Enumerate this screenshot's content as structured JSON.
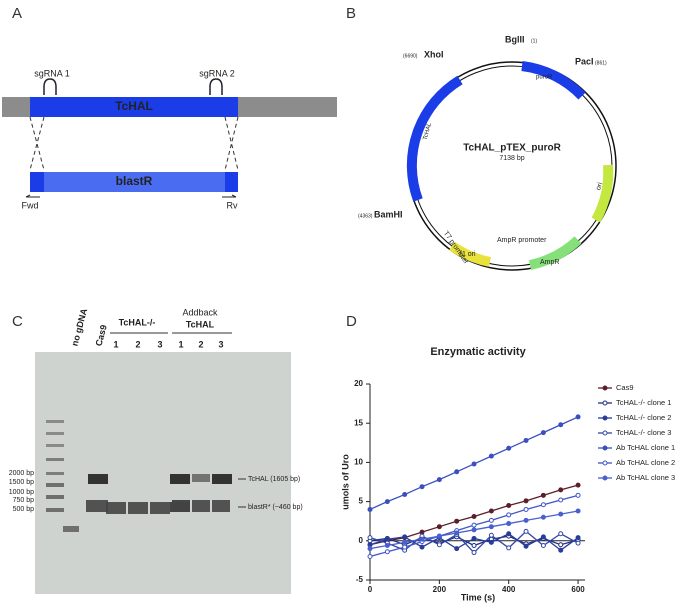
{
  "panels": {
    "a": {
      "letter": "A",
      "guides": [
        "sgRNA 1",
        "sgRNA 2"
      ],
      "gene": "TcHAL",
      "marker": "blastR",
      "primers": [
        "Fwd",
        "Rv"
      ]
    },
    "b": {
      "letter": "B",
      "name": "TcHAL_pTEX_puroR",
      "size": "7138 bp",
      "sites": [
        {
          "label": "BglII",
          "pos": "(1)"
        },
        {
          "label": "PacI",
          "pos": "(861)"
        },
        {
          "label": "XhoI",
          "pos": "(6690)"
        },
        {
          "label": "BamHI",
          "pos": "(4363)"
        }
      ],
      "features": [
        "puroR",
        "TcHAL",
        "T7 promoter",
        "f1 ori",
        "AmpR promoter",
        "AmpR",
        "ori"
      ]
    },
    "c": {
      "letter": "C",
      "lanes": [
        "no gDNA",
        "Cas9"
      ],
      "ko": "TcHAL-/-",
      "addback": [
        "Addback",
        "TcHAL"
      ],
      "numbers": [
        "1",
        "2",
        "3",
        "1",
        "2",
        "3"
      ],
      "ladder": [
        "2000 bp",
        "1500 bp",
        "1000 bp",
        "750 bp",
        "500 bp"
      ],
      "bands": [
        "TcHAL (1605 bp)",
        "blastR* (~460 bp)"
      ]
    },
    "d": {
      "letter": "D"
    }
  },
  "chart_data": {
    "type": "line",
    "title": "Enzymatic activity",
    "xlabel": "Time (s)",
    "ylabel": "umols of Uro",
    "x": [
      0,
      50,
      100,
      150,
      200,
      250,
      300,
      350,
      400,
      450,
      500,
      550,
      600
    ],
    "xlim": [
      0,
      620
    ],
    "xticks": [
      0,
      200,
      400,
      600
    ],
    "ylim": [
      -5,
      20
    ],
    "yticks": [
      -5,
      0,
      5,
      10,
      15,
      20
    ],
    "series": [
      {
        "name": "Cas9",
        "color": "#5b1e2b",
        "values": [
          -0.5,
          0,
          0.4,
          1.1,
          1.8,
          2.5,
          3.1,
          3.8,
          4.5,
          5.1,
          5.8,
          6.5,
          7.1
        ]
      },
      {
        "name": "TcHAL-/- clone 1",
        "color": "#1f2f86",
        "values": [
          0,
          0.3,
          -0.5,
          0.4,
          -0.3,
          0.5,
          -0.6,
          0.2,
          0.6,
          -0.4,
          0.3,
          -0.5,
          0.1
        ]
      },
      {
        "name": "TcHAL-/- clone 2",
        "color": "#2a3c9a",
        "values": [
          -0.5,
          0.2,
          0.5,
          -0.8,
          0.4,
          -1,
          0.3,
          -0.2,
          0.9,
          -0.7,
          0.5,
          -1.2,
          0.4
        ]
      },
      {
        "name": "TcHAL-/- clone 3",
        "color": "#3346a8",
        "values": [
          0.4,
          -0.3,
          -1.2,
          0.6,
          -0.5,
          0.8,
          -1.5,
          0.7,
          -0.9,
          1.2,
          -0.6,
          0.9,
          -0.3
        ]
      },
      {
        "name": "Ab TcHAL clone 1",
        "color": "#3b4fc0",
        "values": [
          4,
          5,
          5.9,
          6.9,
          7.8,
          8.8,
          9.8,
          10.8,
          11.8,
          12.8,
          13.8,
          14.8,
          15.8
        ]
      },
      {
        "name": "Ab TcHAL clone 2",
        "color": "#3f55c8",
        "values": [
          -2,
          -1.4,
          -0.8,
          -0.1,
          0.6,
          1.3,
          2,
          2.6,
          3.3,
          4,
          4.6,
          5.2,
          5.8
        ]
      },
      {
        "name": "Ab TcHAL clone 3",
        "color": "#4a5fd0",
        "values": [
          -1,
          -0.6,
          -0.2,
          0.2,
          0.6,
          1,
          1.4,
          1.8,
          2.2,
          2.6,
          3,
          3.4,
          3.8
        ]
      }
    ]
  }
}
